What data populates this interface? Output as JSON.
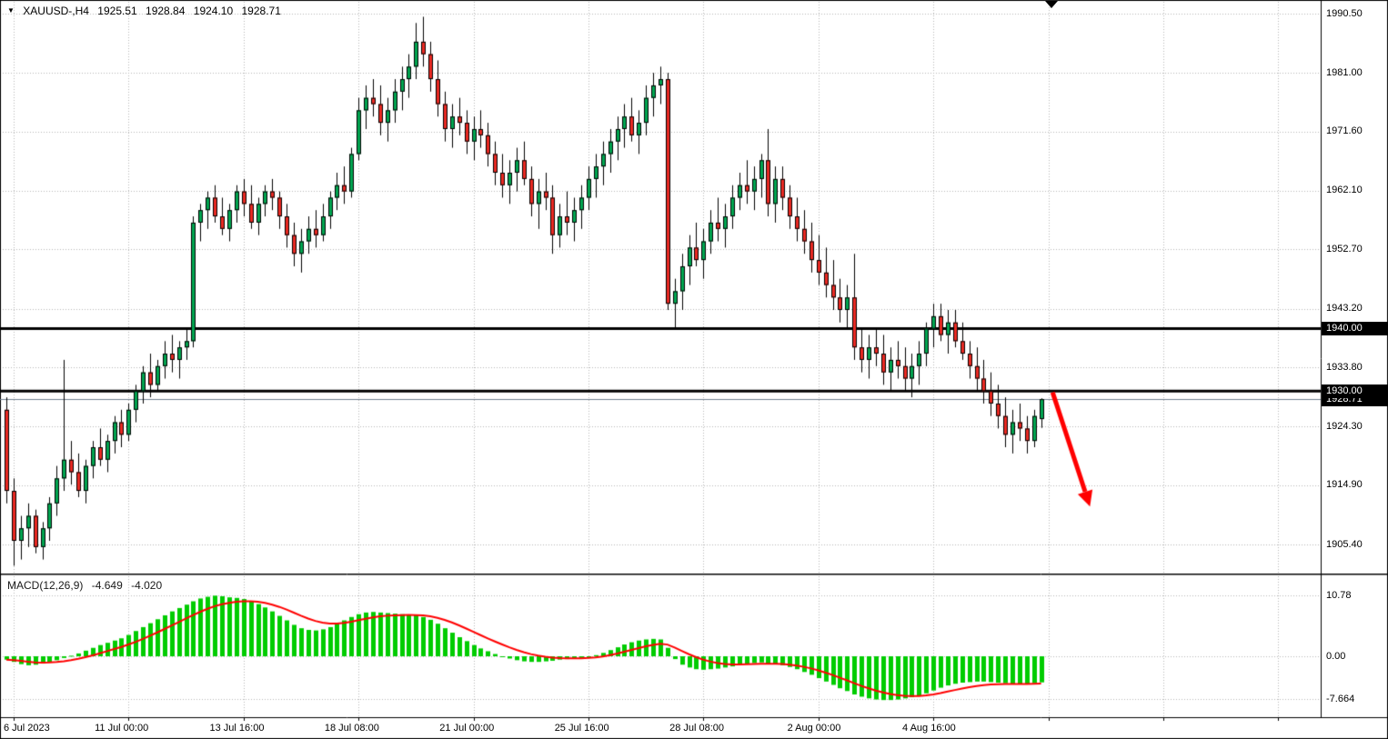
{
  "header": {
    "collapse_icon": "▼",
    "symbol_period": "XAUUSD-,H4",
    "open": "1925.51",
    "high": "1928.84",
    "low": "1924.10",
    "close": "1928.71"
  },
  "macd_panel": {
    "label": "MACD(12,26,9)",
    "main_value": "-4.649",
    "signal_value": "-4.020",
    "axis_labels": [
      {
        "text": "10.78",
        "value": 10.78
      },
      {
        "text": "0.00",
        "value": 0
      },
      {
        "text": "-7.664",
        "value": -7.664
      }
    ]
  },
  "price_axis": {
    "labels": [
      {
        "text": "1990.50",
        "value": 1990.5
      },
      {
        "text": "1981.00",
        "value": 1981.0
      },
      {
        "text": "1971.60",
        "value": 1971.6
      },
      {
        "text": "1962.10",
        "value": 1962.1
      },
      {
        "text": "1952.70",
        "value": 1952.7
      },
      {
        "text": "1943.20",
        "value": 1943.2
      },
      {
        "text": "1933.80",
        "value": 1933.8
      },
      {
        "text": "1924.30",
        "value": 1924.3
      },
      {
        "text": "1914.90",
        "value": 1914.9
      },
      {
        "text": "1905.40",
        "value": 1905.4
      }
    ],
    "level_badges": [
      {
        "text": "1940.00",
        "value": 1940.0
      },
      {
        "text": "1930.00",
        "value": 1930.0
      }
    ],
    "bid_badge": {
      "text": "1928.71",
      "value": 1928.71
    }
  },
  "time_axis": {
    "labels": [
      {
        "text": "6 Jul 2023",
        "bar": 1
      },
      {
        "text": "11 Jul 00:00",
        "bar": 17
      },
      {
        "text": "13 Jul 16:00",
        "bar": 33
      },
      {
        "text": "18 Jul 08:00",
        "bar": 49
      },
      {
        "text": "21 Jul 00:00",
        "bar": 65
      },
      {
        "text": "25 Jul 16:00",
        "bar": 81
      },
      {
        "text": "28 Jul 08:00",
        "bar": 97
      },
      {
        "text": "2 Aug 00:00",
        "bar": 113
      },
      {
        "text": "4 Aug 16:00",
        "bar": 129
      }
    ]
  },
  "colors": {
    "up": "#00a651",
    "down": "#eb2a23",
    "outline": "#000000",
    "macd_hist": "#00cc00",
    "macd_signal": "#ff0000",
    "level_line": "#000000",
    "bid_line": "#708090",
    "grid": "#b6b6b6",
    "badge_bg": "#000000",
    "badge_text": "#ffffff",
    "arrow": "#ff0000"
  },
  "annotations": {
    "arrow": {
      "from_bar": 145.6,
      "from_price": 1929.8,
      "to_bar": 150.8,
      "to_price": 1911.5
    }
  },
  "chart_data": {
    "type": "candlestick",
    "symbol": "XAUUSD-",
    "timeframe": "H4",
    "title": "XAUUSD-,H4",
    "ylim": [
      1900.7,
      1992.4
    ],
    "grid": "dotted",
    "horizontal_levels": [
      1940.0,
      1930.0
    ],
    "bid_price": 1928.71,
    "macd_params": [
      12,
      26,
      9
    ],
    "macd_main": -4.649,
    "macd_signal": -4.02,
    "macd_signal_period": 9,
    "candles_ohlc": [
      [
        1927,
        1929,
        1912,
        1914
      ],
      [
        1914,
        1916,
        1902,
        1906
      ],
      [
        1906,
        1910,
        1903,
        1908
      ],
      [
        1908,
        1912,
        1905,
        1910
      ],
      [
        1910,
        1911,
        1904,
        1905
      ],
      [
        1905,
        1909,
        1903,
        1908
      ],
      [
        1908,
        1913,
        1906,
        1912
      ],
      [
        1912,
        1918,
        1910,
        1916
      ],
      [
        1916,
        1935,
        1914,
        1919
      ],
      [
        1919,
        1922,
        1915,
        1917
      ],
      [
        1917,
        1920,
        1913,
        1914
      ],
      [
        1914,
        1919,
        1912,
        1918
      ],
      [
        1918,
        1922,
        1916,
        1921
      ],
      [
        1921,
        1924,
        1918,
        1919
      ],
      [
        1919,
        1923,
        1917,
        1922
      ],
      [
        1922,
        1926,
        1920,
        1925
      ],
      [
        1925,
        1927,
        1921,
        1923
      ],
      [
        1923,
        1928,
        1922,
        1927
      ],
      [
        1927,
        1931,
        1925,
        1930
      ],
      [
        1930,
        1934,
        1928,
        1933
      ],
      [
        1933,
        1936,
        1929,
        1931
      ],
      [
        1931,
        1935,
        1930,
        1934
      ],
      [
        1934,
        1938,
        1932,
        1936
      ],
      [
        1936,
        1939,
        1933,
        1935
      ],
      [
        1935,
        1938,
        1932,
        1937
      ],
      [
        1937,
        1940,
        1935,
        1938
      ],
      [
        1938,
        1958,
        1937,
        1957
      ],
      [
        1957,
        1960,
        1954,
        1959
      ],
      [
        1959,
        1962,
        1956,
        1961
      ],
      [
        1961,
        1963,
        1957,
        1958
      ],
      [
        1958,
        1961,
        1955,
        1956
      ],
      [
        1956,
        1960,
        1954,
        1959
      ],
      [
        1959,
        1963,
        1957,
        1962
      ],
      [
        1962,
        1964,
        1958,
        1960
      ],
      [
        1960,
        1963,
        1956,
        1957
      ],
      [
        1957,
        1961,
        1955,
        1960
      ],
      [
        1960,
        1963,
        1958,
        1962
      ],
      [
        1962,
        1964,
        1959,
        1961
      ],
      [
        1961,
        1962,
        1956,
        1958
      ],
      [
        1958,
        1960,
        1953,
        1955
      ],
      [
        1955,
        1957,
        1950,
        1952
      ],
      [
        1952,
        1956,
        1949,
        1954
      ],
      [
        1954,
        1958,
        1952,
        1956
      ],
      [
        1956,
        1959,
        1953,
        1955
      ],
      [
        1955,
        1960,
        1954,
        1958
      ],
      [
        1958,
        1962,
        1956,
        1961
      ],
      [
        1961,
        1965,
        1959,
        1963
      ],
      [
        1963,
        1966,
        1960,
        1962
      ],
      [
        1962,
        1969,
        1961,
        1968
      ],
      [
        1968,
        1977,
        1967,
        1975
      ],
      [
        1975,
        1979,
        1972,
        1977
      ],
      [
        1977,
        1980,
        1974,
        1976
      ],
      [
        1976,
        1979,
        1971,
        1973
      ],
      [
        1973,
        1977,
        1970,
        1975
      ],
      [
        1975,
        1980,
        1973,
        1978
      ],
      [
        1978,
        1982,
        1975,
        1980
      ],
      [
        1980,
        1984,
        1977,
        1982
      ],
      [
        1982,
        1989,
        1980,
        1986
      ],
      [
        1986,
        1990,
        1982,
        1984
      ],
      [
        1984,
        1986,
        1978,
        1980
      ],
      [
        1980,
        1983,
        1974,
        1976
      ],
      [
        1976,
        1978,
        1970,
        1972
      ],
      [
        1972,
        1976,
        1969,
        1974
      ],
      [
        1974,
        1977,
        1971,
        1973
      ],
      [
        1973,
        1975,
        1968,
        1970
      ],
      [
        1970,
        1974,
        1967,
        1972
      ],
      [
        1972,
        1975,
        1969,
        1971
      ],
      [
        1971,
        1973,
        1966,
        1968
      ],
      [
        1968,
        1970,
        1963,
        1965
      ],
      [
        1965,
        1968,
        1961,
        1963
      ],
      [
        1963,
        1967,
        1960,
        1965
      ],
      [
        1965,
        1969,
        1962,
        1967
      ],
      [
        1967,
        1970,
        1963,
        1964
      ],
      [
        1964,
        1966,
        1958,
        1960
      ],
      [
        1960,
        1964,
        1956,
        1962
      ],
      [
        1962,
        1965,
        1959,
        1961
      ],
      [
        1961,
        1963,
        1952,
        1955
      ],
      [
        1955,
        1960,
        1953,
        1958
      ],
      [
        1958,
        1962,
        1955,
        1957
      ],
      [
        1957,
        1961,
        1954,
        1959
      ],
      [
        1959,
        1963,
        1956,
        1961
      ],
      [
        1961,
        1966,
        1959,
        1964
      ],
      [
        1964,
        1968,
        1961,
        1966
      ],
      [
        1966,
        1970,
        1963,
        1968
      ],
      [
        1968,
        1972,
        1965,
        1970
      ],
      [
        1970,
        1974,
        1967,
        1972
      ],
      [
        1972,
        1976,
        1969,
        1974
      ],
      [
        1974,
        1977,
        1970,
        1971
      ],
      [
        1971,
        1975,
        1968,
        1973
      ],
      [
        1973,
        1979,
        1971,
        1977
      ],
      [
        1977,
        1981,
        1974,
        1979
      ],
      [
        1979,
        1982,
        1976,
        1980
      ],
      [
        1980,
        1981,
        1943,
        1944
      ],
      [
        1944,
        1948,
        1940,
        1946
      ],
      [
        1946,
        1952,
        1943,
        1950
      ],
      [
        1950,
        1955,
        1947,
        1953
      ],
      [
        1953,
        1957,
        1950,
        1951
      ],
      [
        1951,
        1956,
        1948,
        1954
      ],
      [
        1954,
        1959,
        1952,
        1957
      ],
      [
        1957,
        1961,
        1954,
        1956
      ],
      [
        1956,
        1960,
        1953,
        1958
      ],
      [
        1958,
        1963,
        1956,
        1961
      ],
      [
        1961,
        1965,
        1959,
        1963
      ],
      [
        1963,
        1967,
        1960,
        1962
      ],
      [
        1962,
        1966,
        1959,
        1964
      ],
      [
        1964,
        1968,
        1961,
        1967
      ],
      [
        1967,
        1972,
        1958,
        1960
      ],
      [
        1960,
        1966,
        1957,
        1964
      ],
      [
        1964,
        1966,
        1959,
        1961
      ],
      [
        1961,
        1963,
        1956,
        1958
      ],
      [
        1958,
        1961,
        1954,
        1956
      ],
      [
        1956,
        1959,
        1952,
        1954
      ],
      [
        1954,
        1957,
        1949,
        1951
      ],
      [
        1951,
        1955,
        1947,
        1949
      ],
      [
        1949,
        1953,
        1945,
        1947
      ],
      [
        1947,
        1951,
        1943,
        1945
      ],
      [
        1945,
        1948,
        1941,
        1943
      ],
      [
        1943,
        1947,
        1940,
        1945
      ],
      [
        1945,
        1952,
        1935,
        1937
      ],
      [
        1937,
        1940,
        1933,
        1935
      ],
      [
        1935,
        1939,
        1932,
        1937
      ],
      [
        1937,
        1940,
        1934,
        1936
      ],
      [
        1936,
        1939,
        1931,
        1933
      ],
      [
        1933,
        1937,
        1930,
        1935
      ],
      [
        1935,
        1938,
        1932,
        1934
      ],
      [
        1934,
        1937,
        1930,
        1932
      ],
      [
        1932,
        1936,
        1929,
        1934
      ],
      [
        1934,
        1938,
        1931,
        1936
      ],
      [
        1936,
        1941,
        1934,
        1940
      ],
      [
        1940,
        1944,
        1937,
        1942
      ],
      [
        1942,
        1944,
        1938,
        1939
      ],
      [
        1939,
        1943,
        1936,
        1941
      ],
      [
        1941,
        1943,
        1937,
        1938
      ],
      [
        1938,
        1941,
        1935,
        1936
      ],
      [
        1936,
        1938,
        1932,
        1934
      ],
      [
        1934,
        1937,
        1930,
        1932
      ],
      [
        1932,
        1935,
        1928,
        1930
      ],
      [
        1930,
        1933,
        1926,
        1928
      ],
      [
        1928,
        1931,
        1924,
        1926
      ],
      [
        1926,
        1929,
        1921,
        1923
      ],
      [
        1923,
        1927,
        1920,
        1925
      ],
      [
        1925,
        1928,
        1922,
        1924
      ],
      [
        1924,
        1926,
        1920,
        1922
      ],
      [
        1922,
        1927,
        1921,
        1926
      ],
      [
        1925.51,
        1928.84,
        1924.1,
        1928.71
      ]
    ],
    "macd_histogram": [
      -0.6,
      -1.0,
      -1.4,
      -1.6,
      -1.5,
      -1.3,
      -1.0,
      -0.7,
      -0.3,
      0.1,
      0.5,
      1.0,
      1.5,
      2.0,
      2.4,
      2.8,
      3.2,
      3.8,
      4.5,
      5.2,
      5.9,
      6.6,
      7.3,
      8.0,
      8.6,
      9.2,
      9.8,
      10.3,
      10.6,
      10.8,
      10.7,
      10.5,
      10.4,
      10.2,
      9.8,
      9.3,
      8.7,
      8.0,
      7.2,
      6.4,
      5.6,
      5.0,
      4.7,
      4.6,
      4.8,
      5.2,
      5.8,
      6.4,
      7.0,
      7.5,
      7.8,
      7.9,
      7.8,
      7.7,
      7.6,
      7.5,
      7.4,
      7.3,
      7.0,
      6.5,
      5.8,
      5.0,
      4.2,
      3.4,
      2.7,
      2.0,
      1.4,
      0.9,
      0.4,
      0.0,
      -0.4,
      -0.7,
      -0.9,
      -1.0,
      -1.0,
      -0.9,
      -0.8,
      -0.6,
      -0.5,
      -0.4,
      -0.3,
      -0.1,
      0.2,
      0.6,
      1.1,
      1.6,
      2.1,
      2.5,
      2.8,
      3.0,
      3.1,
      3.0,
      1.5,
      -0.5,
      -1.5,
      -2.0,
      -2.3,
      -2.4,
      -2.3,
      -2.2,
      -2.0,
      -1.8,
      -1.5,
      -1.3,
      -1.2,
      -1.1,
      -1.3,
      -1.4,
      -1.6,
      -1.9,
      -2.3,
      -2.8,
      -3.3,
      -3.9,
      -4.5,
      -5.1,
      -5.7,
      -6.2,
      -6.8,
      -7.2,
      -7.5,
      -7.7,
      -7.8,
      -7.8,
      -7.7,
      -7.5,
      -7.3,
      -7.0,
      -6.6,
      -6.1,
      -5.6,
      -5.2,
      -4.9,
      -4.7,
      -4.6,
      -4.5,
      -4.5,
      -4.6,
      -4.7,
      -4.8,
      -4.9,
      -5.0,
      -4.9,
      -4.8,
      -4.649
    ]
  }
}
